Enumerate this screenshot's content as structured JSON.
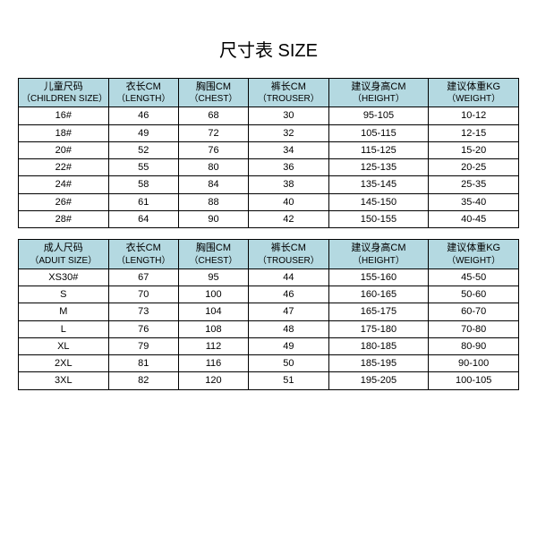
{
  "title": "尺寸表 SIZE",
  "header_bg": "#b4d9e1",
  "children": {
    "columns": [
      {
        "main": "儿童尺码",
        "sub": "（CHILDREN SIZE）"
      },
      {
        "main": "衣长CM",
        "sub": "（LENGTH）"
      },
      {
        "main": "胸围CM",
        "sub": "（CHEST）"
      },
      {
        "main": "裤长CM",
        "sub": "（TROUSER）"
      },
      {
        "main": "建议身高CM",
        "sub": "（HEIGHT）"
      },
      {
        "main": "建议体重KG",
        "sub": "（WEIGHT）"
      }
    ],
    "rows": [
      [
        "16#",
        "46",
        "68",
        "30",
        "95-105",
        "10-12"
      ],
      [
        "18#",
        "49",
        "72",
        "32",
        "105-115",
        "12-15"
      ],
      [
        "20#",
        "52",
        "76",
        "34",
        "115-125",
        "15-20"
      ],
      [
        "22#",
        "55",
        "80",
        "36",
        "125-135",
        "20-25"
      ],
      [
        "24#",
        "58",
        "84",
        "38",
        "135-145",
        "25-35"
      ],
      [
        "26#",
        "61",
        "88",
        "40",
        "145-150",
        "35-40"
      ],
      [
        "28#",
        "64",
        "90",
        "42",
        "150-155",
        "40-45"
      ]
    ]
  },
  "adult": {
    "columns": [
      {
        "main": "成人尺码",
        "sub": "（ADUIT SIZE）"
      },
      {
        "main": "衣长CM",
        "sub": "（LENGTH）"
      },
      {
        "main": "胸围CM",
        "sub": "（CHEST）"
      },
      {
        "main": "裤长CM",
        "sub": "（TROUSER）"
      },
      {
        "main": "建议身高CM",
        "sub": "（HEIGHT）"
      },
      {
        "main": "建议体重KG",
        "sub": "（WEIGHT）"
      }
    ],
    "rows": [
      [
        "XS30#",
        "67",
        "95",
        "44",
        "155-160",
        "45-50"
      ],
      [
        "S",
        "70",
        "100",
        "46",
        "160-165",
        "50-60"
      ],
      [
        "M",
        "73",
        "104",
        "47",
        "165-175",
        "60-70"
      ],
      [
        "L",
        "76",
        "108",
        "48",
        "175-180",
        "70-80"
      ],
      [
        "XL",
        "79",
        "112",
        "49",
        "180-185",
        "80-90"
      ],
      [
        "2XL",
        "81",
        "116",
        "50",
        "185-195",
        "90-100"
      ],
      [
        "3XL",
        "82",
        "120",
        "51",
        "195-205",
        "100-105"
      ]
    ]
  }
}
